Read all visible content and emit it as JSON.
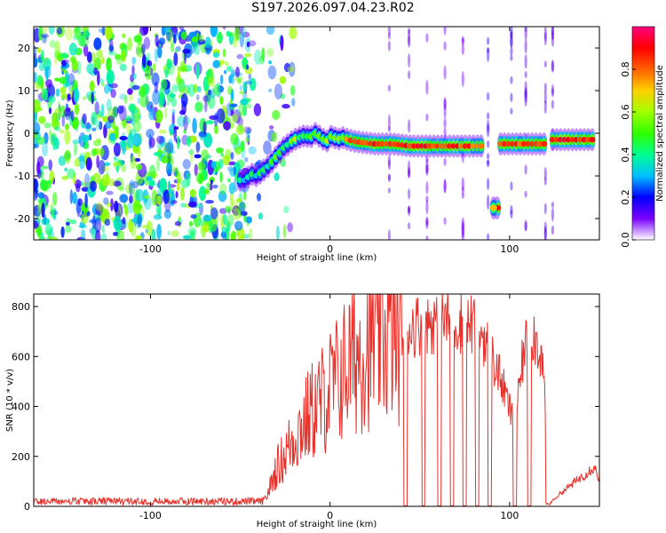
{
  "title": "S197.2026.097.04.23.R02",
  "chart_data": [
    {
      "type": "heatmap",
      "xlabel": "Height of straight line (km)",
      "ylabel": "Frequency (Hz)",
      "xlim": [
        -165,
        150
      ],
      "ylim": [
        -25,
        25
      ],
      "xticks": [
        -100,
        0,
        100
      ],
      "yticks": [
        -20,
        -10,
        0,
        10,
        20
      ],
      "noise_region_x": [
        -165,
        -45
      ],
      "ridge": {
        "x": [
          -50,
          -47,
          -44,
          -41,
          -38,
          -35,
          -32,
          -29,
          -26,
          -23,
          -20,
          -17,
          -14,
          -11,
          -8,
          -5,
          -2,
          1,
          4,
          7,
          10,
          15,
          25,
          35,
          45,
          55,
          65,
          75,
          85
        ],
        "freq": [
          -11,
          -11,
          -9.5,
          -10,
          -9,
          -8,
          -6.5,
          -5,
          -3.5,
          -2.5,
          -1.5,
          -1,
          -0.5,
          -1,
          0,
          -1,
          -2,
          -0.5,
          -1.5,
          -1,
          -1.5,
          -2,
          -2.5,
          -2.5,
          -3,
          -3,
          -3,
          -3,
          -3
        ],
        "amplitude": [
          0.4,
          0.3,
          0.5,
          0.3,
          0.55,
          0.4,
          0.5,
          0.55,
          0.5,
          0.45,
          0.7,
          0.5,
          0.55,
          0.5,
          0.6,
          0.5,
          0.6,
          0.55,
          0.6,
          0.5,
          0.85,
          0.85,
          0.9,
          0.9,
          0.9,
          0.9,
          0.9,
          0.9,
          0.85
        ]
      },
      "segments": [
        {
          "x_start": 95,
          "x_end": 120,
          "freq": -2.5,
          "amplitude": 0.9
        },
        {
          "x_start": 124,
          "x_end": 148,
          "freq": -1.5,
          "amplitude": 0.95
        }
      ],
      "spot": {
        "x": 93,
        "freq": -17.5,
        "amplitude": 0.9
      },
      "colorbar": {
        "label": "Normalized spectral amplitude",
        "ticks": [
          0.0,
          0.2,
          0.4,
          0.6,
          0.8
        ],
        "range": [
          0,
          1
        ],
        "colors": [
          "#ffffff",
          "#7a00ff",
          "#0000ff",
          "#00c0ff",
          "#00ff90",
          "#30ff00",
          "#a0ff00",
          "#ffd000",
          "#ff6000",
          "#ff0000",
          "#ff0080"
        ]
      }
    },
    {
      "type": "line",
      "xlabel": "Height of straight line (km)",
      "ylabel": "SNR (10 * v/v)",
      "xlim": [
        -165,
        150
      ],
      "ylim": [
        0,
        850
      ],
      "xticks": [
        -100,
        0,
        100
      ],
      "yticks": [
        0,
        200,
        400,
        600,
        800
      ],
      "color": "#e8302a",
      "envelope": {
        "x": [
          -165,
          -37,
          -35,
          -30,
          -25,
          -20,
          -15,
          -10,
          -5,
          0,
          5,
          10,
          15,
          20,
          25,
          30,
          35,
          40,
          45,
          50,
          55,
          60,
          65,
          70,
          75,
          80,
          85,
          90,
          95,
          100,
          103,
          108,
          113,
          118,
          120,
          122,
          128,
          135,
          142,
          147,
          150
        ],
        "snr": [
          18,
          20,
          45,
          150,
          210,
          280,
          330,
          380,
          420,
          470,
          510,
          570,
          610,
          650,
          670,
          690,
          700,
          710,
          720,
          730,
          740,
          740,
          745,
          740,
          735,
          725,
          690,
          600,
          510,
          390,
          320,
          630,
          700,
          600,
          400,
          10,
          50,
          90,
          130,
          160,
          110
        ]
      },
      "dropouts": [
        [
          41,
          43
        ],
        [
          51,
          53
        ],
        [
          60,
          62
        ],
        [
          67,
          69
        ],
        [
          74,
          76
        ],
        [
          81,
          83
        ],
        [
          88,
          90
        ],
        [
          102,
          104
        ],
        [
          110,
          112
        ]
      ]
    }
  ]
}
